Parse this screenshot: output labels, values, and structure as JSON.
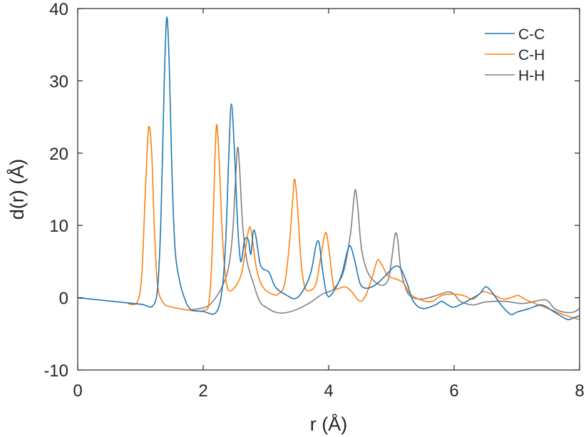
{
  "chart_data": {
    "type": "line",
    "xlabel": "r (Å)",
    "ylabel": "d(r) (Å)",
    "xlim": [
      0,
      8
    ],
    "ylim": [
      -10,
      40
    ],
    "xticks": [
      0,
      2,
      4,
      6,
      8
    ],
    "yticks": [
      -10,
      0,
      10,
      20,
      30,
      40
    ],
    "xtick_labels": [
      "0",
      "2",
      "4",
      "6",
      "8"
    ],
    "ytick_labels": [
      "-10",
      "0",
      "10",
      "20",
      "30",
      "40"
    ],
    "grid": false,
    "legend_position": "top-right",
    "series": [
      {
        "name": "C-C",
        "color": "#1f77b4",
        "points": [
          [
            0,
            0
          ],
          [
            0.5,
            -0.45
          ],
          [
            1.0,
            -0.9
          ],
          [
            1.2,
            -1.1
          ],
          [
            1.28,
            2
          ],
          [
            1.33,
            12
          ],
          [
            1.38,
            30
          ],
          [
            1.42,
            38.8
          ],
          [
            1.46,
            32
          ],
          [
            1.5,
            18
          ],
          [
            1.55,
            7
          ],
          [
            1.62,
            2.5
          ],
          [
            1.7,
            0
          ],
          [
            1.8,
            -1.6
          ],
          [
            2.0,
            -1.9
          ],
          [
            2.2,
            -2.1
          ],
          [
            2.3,
            1
          ],
          [
            2.36,
            8
          ],
          [
            2.41,
            20
          ],
          [
            2.45,
            26.8
          ],
          [
            2.5,
            20
          ],
          [
            2.55,
            10
          ],
          [
            2.6,
            5
          ],
          [
            2.66,
            8
          ],
          [
            2.72,
            8
          ],
          [
            2.76,
            6
          ],
          [
            2.8,
            9.2
          ],
          [
            2.84,
            8.5
          ],
          [
            2.9,
            5
          ],
          [
            2.95,
            4
          ],
          [
            3.05,
            3.5
          ],
          [
            3.15,
            1.5
          ],
          [
            3.3,
            0.5
          ],
          [
            3.5,
            0
          ],
          [
            3.7,
            3
          ],
          [
            3.8,
            7.3
          ],
          [
            3.85,
            7.5
          ],
          [
            3.9,
            4
          ],
          [
            3.97,
            0.5
          ],
          [
            4.05,
            0.5
          ],
          [
            4.2,
            3
          ],
          [
            4.3,
            6.5
          ],
          [
            4.35,
            7.1
          ],
          [
            4.42,
            5
          ],
          [
            4.5,
            2
          ],
          [
            4.6,
            1.3
          ],
          [
            4.75,
            1.8
          ],
          [
            4.9,
            3
          ],
          [
            5.05,
            4.3
          ],
          [
            5.15,
            4
          ],
          [
            5.25,
            2
          ],
          [
            5.35,
            -0.5
          ],
          [
            5.5,
            -1.5
          ],
          [
            5.7,
            -1
          ],
          [
            5.8,
            -0.5
          ],
          [
            5.9,
            -1
          ],
          [
            6.0,
            -1.3
          ],
          [
            6.2,
            -0.5
          ],
          [
            6.4,
            0.5
          ],
          [
            6.5,
            1.5
          ],
          [
            6.6,
            0.8
          ],
          [
            6.75,
            -1
          ],
          [
            6.9,
            -2.3
          ],
          [
            7.0,
            -2
          ],
          [
            7.2,
            -1.5
          ],
          [
            7.4,
            -1
          ],
          [
            7.6,
            -2
          ],
          [
            7.8,
            -3
          ],
          [
            7.9,
            -2.8
          ],
          [
            8.0,
            -2.5
          ]
        ]
      },
      {
        "name": "C-H",
        "color": "#ff7f0e",
        "points": [
          [
            0.8,
            -0.85
          ],
          [
            0.95,
            -0.6
          ],
          [
            1.02,
            3
          ],
          [
            1.07,
            13
          ],
          [
            1.11,
            21
          ],
          [
            1.14,
            23.7
          ],
          [
            1.18,
            20
          ],
          [
            1.22,
            10
          ],
          [
            1.27,
            2
          ],
          [
            1.35,
            -0.5
          ],
          [
            1.5,
            -1.3
          ],
          [
            2.0,
            -1.8
          ],
          [
            2.1,
            0
          ],
          [
            2.15,
            8
          ],
          [
            2.19,
            20
          ],
          [
            2.22,
            23.9
          ],
          [
            2.26,
            18
          ],
          [
            2.31,
            8
          ],
          [
            2.37,
            2
          ],
          [
            2.45,
            1
          ],
          [
            2.6,
            3
          ],
          [
            2.68,
            7
          ],
          [
            2.73,
            9.6
          ],
          [
            2.77,
            9
          ],
          [
            2.85,
            4
          ],
          [
            2.95,
            1.5
          ],
          [
            3.1,
            0.5
          ],
          [
            3.2,
            0.5
          ],
          [
            3.3,
            2
          ],
          [
            3.38,
            8
          ],
          [
            3.43,
            14
          ],
          [
            3.46,
            16.4
          ],
          [
            3.5,
            13
          ],
          [
            3.56,
            5
          ],
          [
            3.62,
            1.5
          ],
          [
            3.7,
            1
          ],
          [
            3.8,
            2
          ],
          [
            3.88,
            6
          ],
          [
            3.95,
            9
          ],
          [
            4.0,
            7
          ],
          [
            4.07,
            2
          ],
          [
            4.12,
            1.2
          ],
          [
            4.25,
            1.5
          ],
          [
            4.35,
            1
          ],
          [
            4.5,
            -0.5
          ],
          [
            4.6,
            0.5
          ],
          [
            4.7,
            3
          ],
          [
            4.78,
            5.2
          ],
          [
            4.85,
            4.5
          ],
          [
            4.95,
            3
          ],
          [
            5.1,
            2.5
          ],
          [
            5.2,
            2
          ],
          [
            5.3,
            0.5
          ],
          [
            5.5,
            -0.4
          ],
          [
            5.65,
            -0.5
          ],
          [
            5.8,
            0.3
          ],
          [
            5.95,
            0.5
          ],
          [
            6.15,
            0.3
          ],
          [
            6.3,
            -0.2
          ],
          [
            6.45,
            0.8
          ],
          [
            6.6,
            0.5
          ],
          [
            6.8,
            -0.2
          ],
          [
            7.0,
            0.3
          ],
          [
            7.05,
            0.2
          ],
          [
            7.2,
            -0.5
          ],
          [
            7.5,
            -1.5
          ],
          [
            7.7,
            -2.2
          ],
          [
            7.9,
            -2.8
          ],
          [
            8.0,
            -3
          ]
        ]
      },
      {
        "name": "H-H",
        "color": "#808080",
        "points": [
          [
            1.8,
            -1.7
          ],
          [
            2.0,
            -1.4
          ],
          [
            2.1,
            -1
          ],
          [
            2.2,
            0
          ],
          [
            2.3,
            1.5
          ],
          [
            2.4,
            4
          ],
          [
            2.47,
            9
          ],
          [
            2.52,
            17
          ],
          [
            2.55,
            20.8
          ],
          [
            2.58,
            18
          ],
          [
            2.63,
            10
          ],
          [
            2.7,
            5
          ],
          [
            2.8,
            2
          ],
          [
            2.9,
            -0.5
          ],
          [
            3.0,
            -1.3
          ],
          [
            3.15,
            -2
          ],
          [
            3.3,
            -2.1
          ],
          [
            3.5,
            -1.6
          ],
          [
            3.7,
            -0.7
          ],
          [
            3.9,
            0.5
          ],
          [
            4.05,
            1
          ],
          [
            4.15,
            2
          ],
          [
            4.25,
            4
          ],
          [
            4.35,
            9
          ],
          [
            4.4,
            13.5
          ],
          [
            4.43,
            14.9
          ],
          [
            4.47,
            12
          ],
          [
            4.52,
            7
          ],
          [
            4.6,
            4
          ],
          [
            4.7,
            2.5
          ],
          [
            4.85,
            1.7
          ],
          [
            4.95,
            2.5
          ],
          [
            5.0,
            5
          ],
          [
            5.06,
            8.8
          ],
          [
            5.1,
            8
          ],
          [
            5.15,
            4
          ],
          [
            5.22,
            1.5
          ],
          [
            5.3,
            0.2
          ],
          [
            5.45,
            -0.2
          ],
          [
            5.6,
            0
          ],
          [
            5.75,
            0.4
          ],
          [
            5.9,
            0.8
          ],
          [
            6.0,
            0.5
          ],
          [
            6.1,
            -0.5
          ],
          [
            6.3,
            -1
          ],
          [
            6.5,
            -0.6
          ],
          [
            6.8,
            -0.5
          ],
          [
            7.1,
            -0.8
          ],
          [
            7.4,
            -0.3
          ],
          [
            7.5,
            -0.5
          ],
          [
            7.6,
            -1.5
          ],
          [
            7.75,
            -2
          ],
          [
            7.9,
            -2
          ],
          [
            8.0,
            -1.5
          ]
        ]
      }
    ]
  }
}
